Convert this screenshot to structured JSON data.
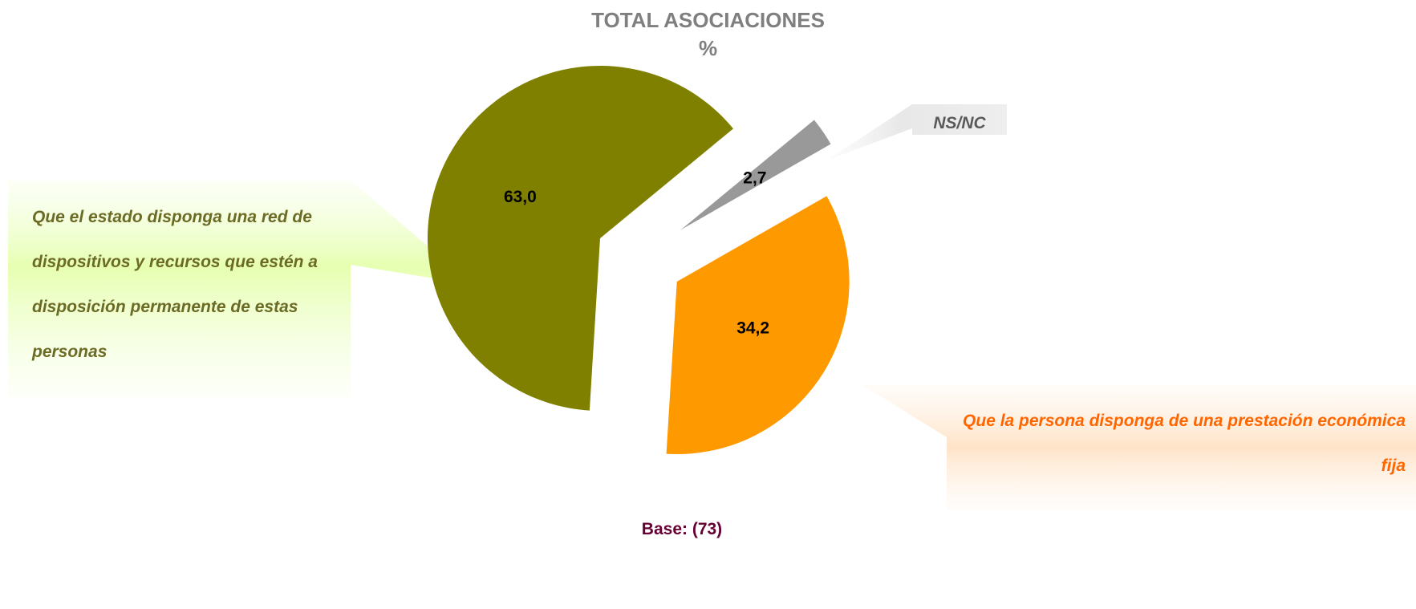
{
  "chart_data": {
    "type": "pie",
    "title": "TOTAL ASOCIACIONES",
    "subtitle": "%",
    "categories": [
      "Que el estado disponga una red de dispositivos y recursos que estén a disposición permanente de estas personas",
      "NS/NC",
      "Que la persona disponga de una prestación económica fija"
    ],
    "values": [
      63.0,
      2.7,
      34.2
    ],
    "value_labels": [
      "63,0",
      "2,7",
      "34,2"
    ],
    "colors": [
      "#808000",
      "#999999",
      "#ff9900"
    ],
    "note": "Base: (73)"
  }
}
